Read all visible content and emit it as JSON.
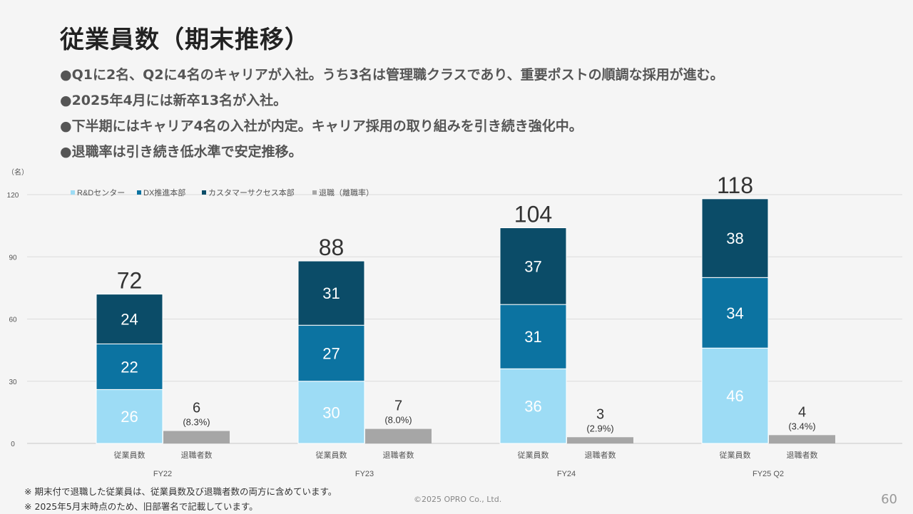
{
  "title": "従業員数（期末推移）",
  "bullets": [
    "●Q1に2名、Q2に4名のキャリアが入社。うち3名は管理職クラスであり、重要ポストの順調な採用が進む。",
    "●2025年4月には新卒13名が入社。",
    "●下半期にはキャリア4名の入社が内定。キャリア採用の取り組みを引き続き強化中。",
    "●退職率は引き続き低水準で安定推移。"
  ],
  "footnotes": [
    "※ 期末付で退職した従業員は、従業員数及び退職者数の両方に含めています。",
    "※ 2025年5月末時点のため、旧部署名で記載しています。"
  ],
  "copyright": "©2025 OPRO Co., Ltd.",
  "page_number": "60",
  "chart_data": {
    "type": "bar",
    "stacked": true,
    "y_unit": "（名）",
    "ylim": [
      0,
      120
    ],
    "yticks": [
      0,
      30,
      60,
      90,
      120
    ],
    "grid": true,
    "legend_position": "top-left",
    "periods": [
      "FY22",
      "FY23",
      "FY24",
      "FY25 Q2"
    ],
    "bar_labels": [
      "従業員数",
      "退職者数"
    ],
    "series": [
      {
        "name": "R&Dセンター",
        "color": "#9ddcf5",
        "values": [
          26,
          30,
          36,
          46
        ]
      },
      {
        "name": "DX推進本部",
        "color": "#0c73a1",
        "values": [
          22,
          27,
          31,
          34
        ]
      },
      {
        "name": "カスタマーサクセス本部",
        "color": "#0b4c68",
        "values": [
          24,
          31,
          37,
          38
        ]
      }
    ],
    "totals": [
      72,
      88,
      104,
      118
    ],
    "retirement": {
      "name": "退職（離職率）",
      "color": "#a6a6a6",
      "values": [
        6,
        7,
        3,
        4
      ],
      "rates": [
        "(8.3%)",
        "(8.0%)",
        "(2.9%)",
        "(3.4%)"
      ]
    }
  }
}
